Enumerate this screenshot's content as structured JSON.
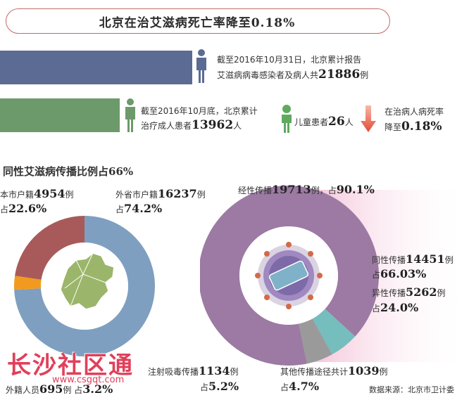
{
  "title": "北京在治艾滋病死亡率降至0.18%",
  "stats": {
    "total": {
      "line1": "截至2016年10月31日，北京累计报告",
      "line2_prefix": "艾滋病病毒感染者及病人共",
      "value": "21886",
      "unit": "例"
    },
    "treated": {
      "line1": "截至2016年10月底，北京累计",
      "line2_prefix": "治疗成人患者",
      "value": "13962",
      "unit": "人"
    },
    "children": {
      "prefix": "儿童患者",
      "value": "26",
      "unit": "人"
    },
    "death_rate": {
      "line1": "在治病人病死率",
      "line2_prefix": "降至",
      "value": "0.18%"
    }
  },
  "section_title": "同性艾滋病传播比例占66%",
  "chart_data": [
    {
      "type": "pie",
      "categories": [
        "本市户籍",
        "外省市户籍",
        "外籍人员"
      ],
      "values": [
        4954,
        16237,
        695
      ],
      "percents": [
        22.6,
        74.2,
        3.2
      ],
      "colors": [
        "#a85a5a",
        "#7f9fc0",
        "#f29a1f"
      ],
      "labels": {
        "local": {
          "name": "本市户籍",
          "value": "4954",
          "unit": "例",
          "pct_prefix": "占",
          "pct": "22.6%"
        },
        "other_province": {
          "name": "外省市户籍",
          "value": "16237",
          "unit": "例",
          "pct_prefix": "占",
          "pct": "74.2%"
        },
        "foreign": {
          "name": "外籍人员",
          "value": "695",
          "unit": "例 占",
          "pct": "3.2%"
        }
      }
    },
    {
      "type": "pie",
      "categories": [
        "性传播",
        "注射吸毒传播",
        "其他传播途径"
      ],
      "values": [
        19713,
        1134,
        1039
      ],
      "percents": [
        90.1,
        5.2,
        4.7
      ],
      "sub_breakdown": {
        "categories": [
          "同性传播",
          "异性传播"
        ],
        "values": [
          14451,
          5262
        ],
        "percents": [
          66.03,
          24.0
        ]
      },
      "colors": [
        "#9c7aa3",
        "#76bdbd",
        "#9a9a9a"
      ],
      "labels": {
        "sexual": {
          "name": "经性传播",
          "value": "19713",
          "unit": "例，占",
          "pct": "90.1%"
        },
        "homo": {
          "name": "同性传播",
          "value": "14451",
          "unit": "例",
          "pct_prefix": "占",
          "pct": "66.03%"
        },
        "hetero": {
          "name": "异性传播",
          "value": "5262",
          "unit": "例",
          "pct_prefix": "占",
          "pct": "24.0%"
        },
        "drug": {
          "name": "注射吸毒传播",
          "value": "1134",
          "unit": "例",
          "pct_prefix": "占",
          "pct": "5.2%"
        },
        "other": {
          "name": "其他传播途径共计",
          "value": "1039",
          "unit": "例",
          "pct_prefix": "占",
          "pct": "4.7%"
        }
      }
    }
  ],
  "source": "数据来源：北京市卫计委",
  "watermark": {
    "text": "长沙社区通",
    "url": "www.csgqt.com"
  }
}
